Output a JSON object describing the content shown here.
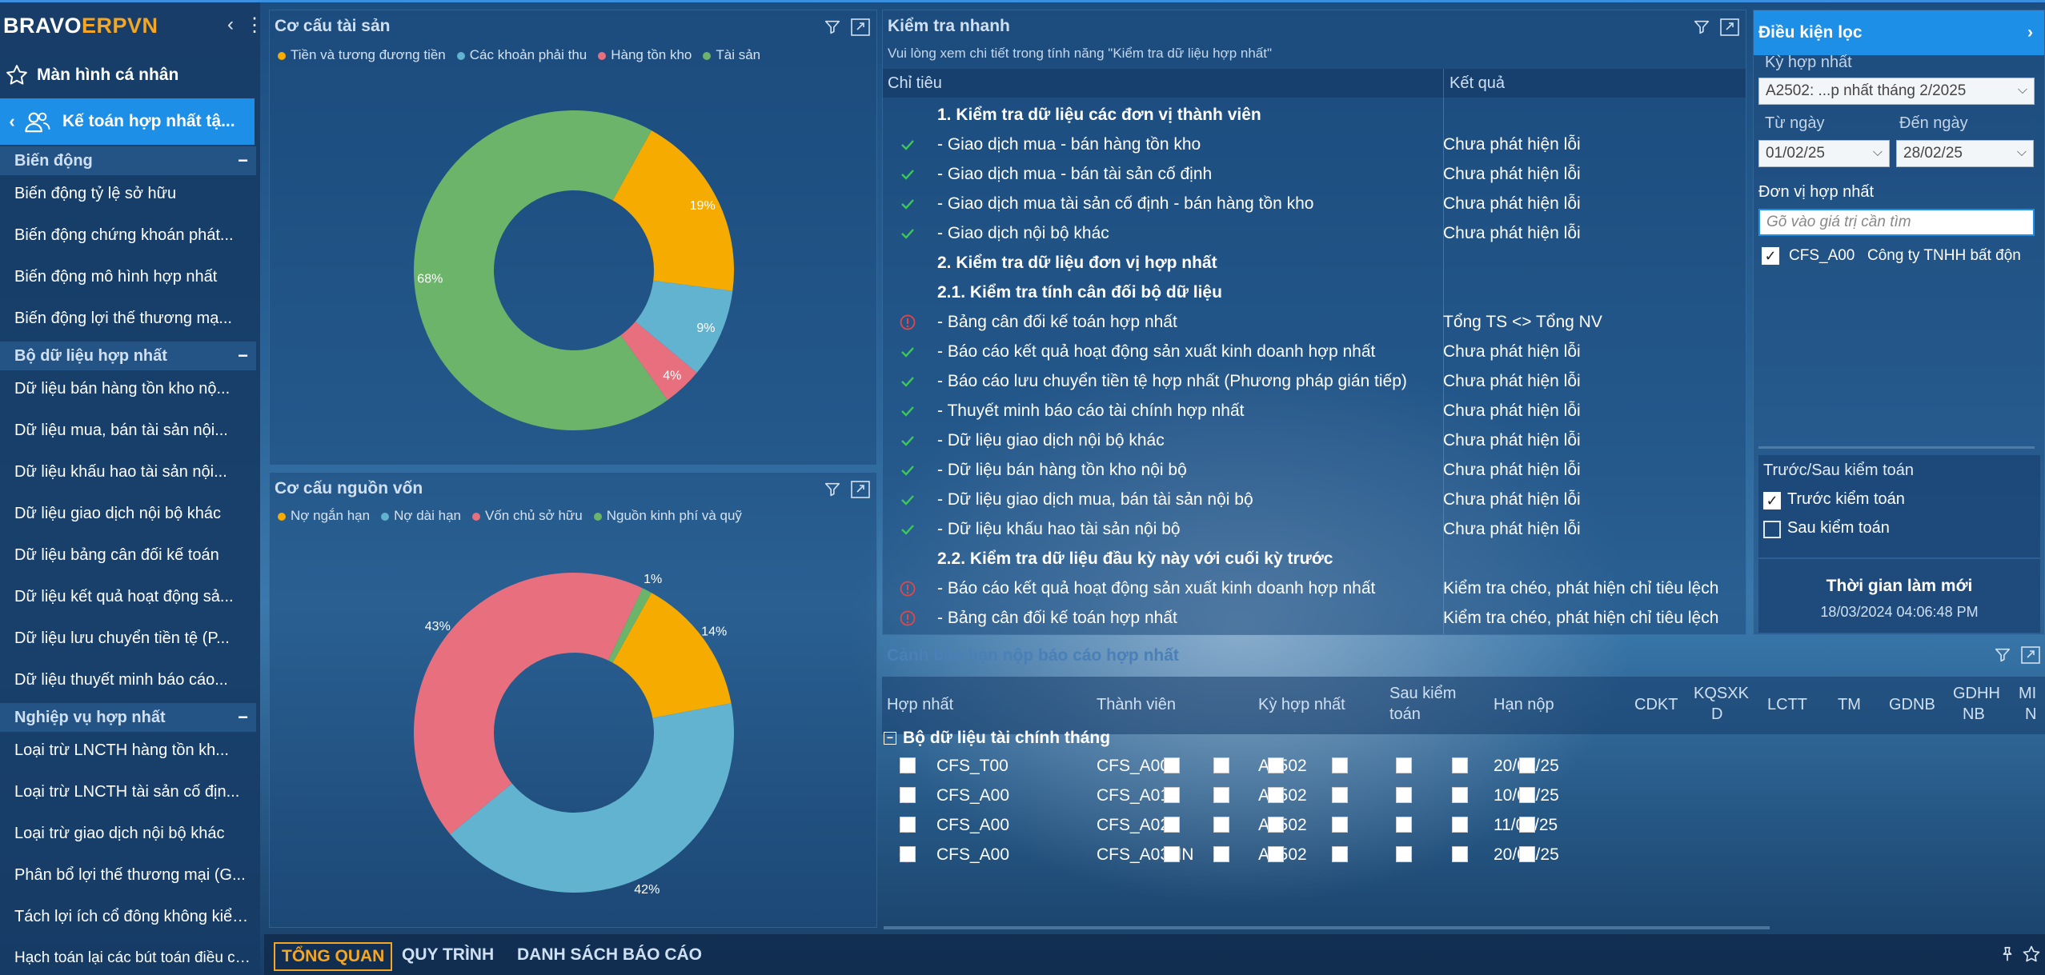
{
  "app": {
    "brand_left": "BRAVO",
    "brand_right": "ERPVN"
  },
  "sidebar": {
    "personal": "Màn hình cá nhân",
    "active_module": "Kế toán hợp nhất tậ...",
    "sections": [
      {
        "title": "Biến động",
        "items": [
          "Biến động tỷ lệ sở hữu",
          "Biến động chứng khoán phát...",
          "Biến động mô hình hợp nhất",
          "Biến động lợi thế thương mạ..."
        ]
      },
      {
        "title": "Bộ dữ liệu hợp nhất",
        "items": [
          "Dữ liệu bán hàng tồn kho nộ...",
          "Dữ liệu mua, bán tài sản nội...",
          "Dữ liệu khấu hao tài sản nội...",
          "Dữ liệu giao dịch nội bộ khác",
          "Dữ liệu bảng cân đối kế toán",
          "Dữ liệu kết quả hoạt động sả...",
          "Dữ liệu lưu chuyển tiền tệ (P...",
          "Dữ liệu thuyết minh báo cáo..."
        ]
      },
      {
        "title": "Nghiệp vụ hợp nhất",
        "items": [
          "Loại trừ LNCTH hàng tồn kh...",
          "Loại trừ LNCTH tài sản cố địn...",
          "Loại trừ giao dịch nội bộ khác",
          "Phân bổ lợi thế thương mại (G...",
          "Tách lợi ích cổ đông không kiểm...",
          "Hạch toán lại các bút toán điều chỉn..."
        ]
      }
    ]
  },
  "asset_panel": {
    "title": "Cơ cấu tài sản",
    "legend": [
      "Tiền và tương đương tiền",
      "Các khoản phải thu",
      "Hàng tồn kho",
      "Tài sản"
    ]
  },
  "capital_panel": {
    "title": "Cơ cấu nguồn vốn",
    "legend": [
      "Nợ ngắn hạn",
      "Nợ dài hạn",
      "Vốn chủ sở hữu",
      "Nguồn kinh phí và quỹ"
    ]
  },
  "chart_data": [
    {
      "type": "pie",
      "title": "Cơ cấu tài sản",
      "categories": [
        "Tiền và tương đương tiền",
        "Các khoản phải thu",
        "Hàng tồn kho",
        "Tài sản"
      ],
      "values": [
        19,
        9,
        4,
        68
      ],
      "labels": [
        "19%",
        "9%",
        "4%",
        "68%"
      ],
      "colors": [
        "#f5ab00",
        "#62b3cf",
        "#e8707e",
        "#6bb46a"
      ]
    },
    {
      "type": "pie",
      "title": "Cơ cấu nguồn vốn",
      "categories": [
        "Nợ ngắn hạn",
        "Nợ dài hạn",
        "Vốn chủ sở hữu",
        "Nguồn kinh phí và quỹ"
      ],
      "values": [
        14,
        42,
        43,
        1
      ],
      "labels": [
        "14%",
        "42%",
        "43%",
        "1%"
      ],
      "colors": [
        "#f5ab00",
        "#62b3cf",
        "#e8707e",
        "#6bb46a"
      ]
    }
  ],
  "quick_check": {
    "title": "Kiểm tra nhanh",
    "subtitle": "Vui lòng xem chi tiết trong tính năng \"Kiểm tra dữ liệu hợp nhất\"",
    "col_criteria": "Chỉ tiêu",
    "col_result": "Kết quả",
    "rows": [
      {
        "status": "none",
        "bold": true,
        "text": "1. Kiểm tra dữ liệu các đơn vị thành viên",
        "result": ""
      },
      {
        "status": "ok",
        "bold": false,
        "text": "- Giao dịch mua - bán hàng tồn kho",
        "result": "Chưa phát hiện lỗi"
      },
      {
        "status": "ok",
        "bold": false,
        "text": "- Giao dịch mua - bán tài sản cố định",
        "result": "Chưa phát hiện lỗi"
      },
      {
        "status": "ok",
        "bold": false,
        "text": "- Giao dịch mua tài sản cố định - bán hàng tồn kho",
        "result": "Chưa phát hiện lỗi"
      },
      {
        "status": "ok",
        "bold": false,
        "text": "- Giao dịch nội bộ khác",
        "result": "Chưa phát hiện lỗi"
      },
      {
        "status": "none",
        "bold": true,
        "text": "2. Kiểm tra dữ liệu đơn vị hợp nhất",
        "result": ""
      },
      {
        "status": "none",
        "bold": true,
        "text": "2.1. Kiểm tra tính cân đối bộ dữ liệu",
        "result": ""
      },
      {
        "status": "err",
        "bold": false,
        "text": "- Bảng cân đối kế toán hợp nhất",
        "result": "Tổng TS <> Tổng NV"
      },
      {
        "status": "ok",
        "bold": false,
        "text": "- Báo cáo kết quả hoạt động sản xuất kinh doanh hợp nhất",
        "result": "Chưa phát hiện lỗi"
      },
      {
        "status": "ok",
        "bold": false,
        "text": "- Báo cáo lưu chuyển tiền tệ hợp nhất (Phương pháp gián tiếp)",
        "result": "Chưa phát hiện lỗi"
      },
      {
        "status": "ok",
        "bold": false,
        "text": "- Thuyết minh báo cáo tài chính hợp nhất",
        "result": "Chưa phát hiện lỗi"
      },
      {
        "status": "ok",
        "bold": false,
        "text": "- Dữ liệu giao dịch nội bộ khác",
        "result": "Chưa phát hiện lỗi"
      },
      {
        "status": "ok",
        "bold": false,
        "text": "- Dữ liệu bán hàng tồn kho nội bộ",
        "result": "Chưa phát hiện lỗi"
      },
      {
        "status": "ok",
        "bold": false,
        "text": "- Dữ liệu giao dịch mua, bán tài sản nội bộ",
        "result": "Chưa phát hiện lỗi"
      },
      {
        "status": "ok",
        "bold": false,
        "text": "- Dữ liệu khấu hao tài sản nội bộ",
        "result": "Chưa phát hiện lỗi"
      },
      {
        "status": "none",
        "bold": true,
        "text": "2.2. Kiểm tra dữ liệu đầu kỳ này với cuối kỳ trước",
        "result": ""
      },
      {
        "status": "err",
        "bold": false,
        "text": "- Báo cáo kết quả hoạt động sản xuất kinh doanh hợp nhất",
        "result": "Kiểm tra chéo, phát hiện chỉ tiêu lệch"
      },
      {
        "status": "err",
        "bold": false,
        "text": "- Bảng cân đối kế toán hợp nhất",
        "result": "Kiểm tra chéo, phát hiện chỉ tiêu lệch"
      }
    ]
  },
  "filter": {
    "title": "Điều kiện lọc",
    "period_label": "Kỳ hợp nhất",
    "period_value": "A2502: ...p nhất tháng 2/2025",
    "from_label": "Từ ngày",
    "to_label": "Đến ngày",
    "from_value": "01/02/25",
    "to_value": "28/02/25",
    "unit_label": "Đơn vị hợp nhất",
    "search_placeholder": "Gõ vào giá trị cần tìm",
    "unit_code": "CFS_A00",
    "unit_name": "Công ty TNHH bất độn",
    "audit_label": "Trước/Sau kiểm toán",
    "before_audit": "Trước kiểm toán",
    "after_audit": "Sau kiểm toán",
    "refresh_label": "Thời gian làm mới",
    "refresh_time": "18/03/2024 04:06:48 PM"
  },
  "warning": {
    "title": "Cảnh báo hạn nộp báo cáo hợp nhất",
    "columns": {
      "hop_nhat": "Hợp nhất",
      "thanh_vien": "Thành viên",
      "ky": "Kỳ hợp nhất",
      "sau_kt_1": "Sau kiểm",
      "sau_kt_2": "toán",
      "han_nop": "Hạn nộp",
      "cdkt": "CDKT",
      "kq_1": "KQSXK",
      "kq_2": "D",
      "lctt": "LCTT",
      "tm": "TM",
      "gdnb": "GDNB",
      "gdhh_1": "GDHH",
      "gdhh_2": "NB",
      "mi_1": "MI",
      "mi_2": "N"
    },
    "group": "Bộ dữ liệu tài chính tháng",
    "rows": [
      {
        "hop_nhat": "CFS_T00",
        "thanh_vien": "CFS_A00",
        "ky": "A2502",
        "han_nop": "20/03/25"
      },
      {
        "hop_nhat": "CFS_A00",
        "thanh_vien": "CFS_A01",
        "ky": "A2502",
        "han_nop": "10/03/25"
      },
      {
        "hop_nhat": "CFS_A00",
        "thanh_vien": "CFS_A02",
        "ky": "A2502",
        "han_nop": "11/03/25"
      },
      {
        "hop_nhat": "CFS_A00",
        "thanh_vien": "CFS_A03HN",
        "ky": "A2502",
        "han_nop": "20/03/25"
      }
    ]
  },
  "tabs": [
    "TỔNG QUAN",
    "QUY TRÌNH",
    "DANH SÁCH BÁO CÁO"
  ],
  "colors": {
    "accent": "#1e8fe6",
    "ok": "#3cc957",
    "err": "#e04848",
    "brand": "#f5a623"
  }
}
